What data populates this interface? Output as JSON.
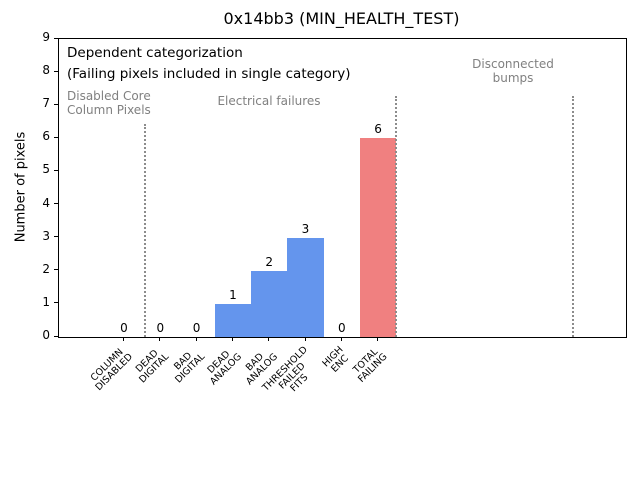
{
  "window": {
    "background_color": "#ffffff"
  },
  "chart_data": {
    "type": "bar",
    "title": "0x14bb3 (MIN_HEALTH_TEST)",
    "xlabel": "",
    "ylabel": "Number of pixels",
    "ylim": [
      0,
      9
    ],
    "ytick_labels": [
      "0",
      "1",
      "2",
      "3",
      "4",
      "5",
      "6",
      "7",
      "8",
      "9"
    ],
    "grid": false,
    "legend": null,
    "categories": [
      [
        "COLUMN",
        "DISABLED"
      ],
      [
        "DEAD",
        "DIGITAL"
      ],
      [
        "BAD",
        "DIGITAL"
      ],
      [
        "DEAD",
        "ANALOG"
      ],
      [
        "BAD",
        "ANALOG"
      ],
      [
        "THRESHOLD",
        "FAILED",
        "FITS"
      ],
      [
        "HIGH",
        "ENC"
      ],
      [
        "TOTAL",
        "FAILING"
      ]
    ],
    "values": [
      0,
      0,
      0,
      1,
      2,
      3,
      0,
      6
    ],
    "bar_value_labels": [
      "0",
      "0",
      "0",
      "1",
      "2",
      "3",
      "0",
      "6"
    ],
    "bar_colors": [
      "#6495ED",
      "#6495ED",
      "#6495ED",
      "#6495ED",
      "#6495ED",
      "#6495ED",
      "#6495ED",
      "#F08080"
    ],
    "annotations": {
      "dependent_note_lines": [
        "Dependent categorization",
        "(Failing pixels included in single category)"
      ],
      "group_labels": [
        {
          "lines": [
            "Disabled Core",
            "Column Pixels"
          ]
        },
        {
          "lines": [
            "Electrical failures"
          ]
        },
        {
          "lines": [
            "Disconnected",
            "bumps"
          ]
        }
      ]
    },
    "separators": {
      "count": 3,
      "linestyle": "dotted",
      "color": "#8c8c8c"
    },
    "colors": {
      "bar_blue": "#6495ED",
      "bar_red": "#F08080",
      "group_label_gray": "#808080",
      "axis_black": "#000000"
    }
  }
}
